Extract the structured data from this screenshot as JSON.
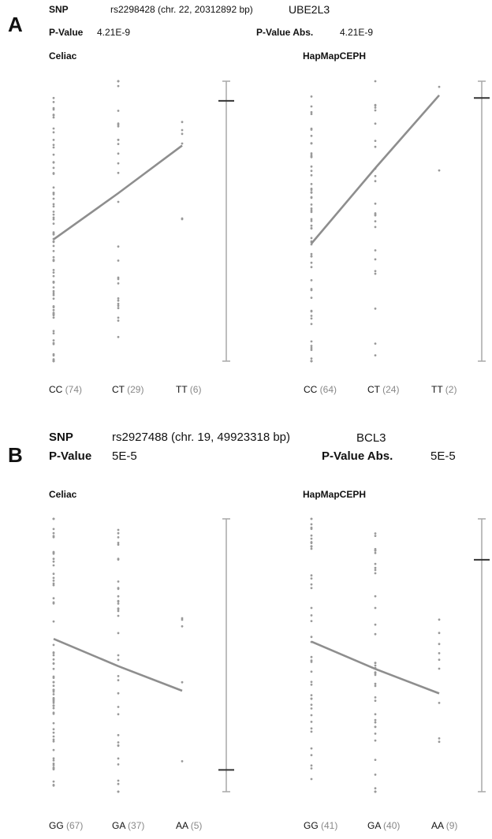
{
  "chart_data": [
    {
      "type": "scatter",
      "panel": "A",
      "snp_label": "SNP",
      "snp": "rs2298428 (chr. 22, 20312892 bp)",
      "gene": "UBE2L3",
      "pvalue_label": "P-Value",
      "pvalue": "4.21E-9",
      "pvalue_abs_label": "P-Value Abs.",
      "pvalue_abs": "4.21E-9",
      "subplots": [
        {
          "title": "Celiac",
          "genotypes": [
            {
              "name": "CC",
              "count": "(74)",
              "count_n": 74,
              "mean": 0.435
            },
            {
              "name": "CT",
              "count": "(29)",
              "count_n": 29,
              "mean": 0.6
            },
            {
              "name": "TT",
              "count": "(6)",
              "count_n": 6,
              "mean": 0.77
            }
          ],
          "marker": 0.93
        },
        {
          "title": "HapMapCEPH",
          "genotypes": [
            {
              "name": "CC",
              "count": "(64)",
              "count_n": 64,
              "mean": 0.42
            },
            {
              "name": "CT",
              "count": "(24)",
              "count_n": 24,
              "mean": 0.69
            },
            {
              "name": "TT",
              "count": "(2)",
              "count_n": 2,
              "mean": 0.95
            }
          ],
          "marker": 0.94
        }
      ]
    },
    {
      "type": "scatter",
      "panel": "B",
      "snp_label": "SNP",
      "snp": "rs2927488 (chr. 19, 49923318 bp)",
      "gene": "BCL3",
      "pvalue_label": "P-Value",
      "pvalue": "5E-5",
      "pvalue_abs_label": "P-Value Abs.",
      "pvalue_abs": "5E-5",
      "subplots": [
        {
          "title": "Celiac",
          "genotypes": [
            {
              "name": "GG",
              "count": "(67)",
              "count_n": 67,
              "mean": 0.56
            },
            {
              "name": "GA",
              "count": "(37)",
              "count_n": 37,
              "mean": 0.46
            },
            {
              "name": "AA",
              "count": "(5)",
              "count_n": 5,
              "mean": 0.37
            }
          ],
          "marker": 0.08
        },
        {
          "title": "HapMapCEPH",
          "genotypes": [
            {
              "name": "GG",
              "count": "(41)",
              "count_n": 41,
              "mean": 0.55
            },
            {
              "name": "GA",
              "count": "(40)",
              "count_n": 40,
              "mean": 0.45
            },
            {
              "name": "AA",
              "count": "(9)",
              "count_n": 9,
              "mean": 0.36
            }
          ],
          "marker": 0.85
        }
      ]
    }
  ],
  "colors": {
    "point": "#9a9a9a",
    "trend": "#8e8e8e",
    "axis": "#a8a8a8",
    "marker": "#333333"
  }
}
